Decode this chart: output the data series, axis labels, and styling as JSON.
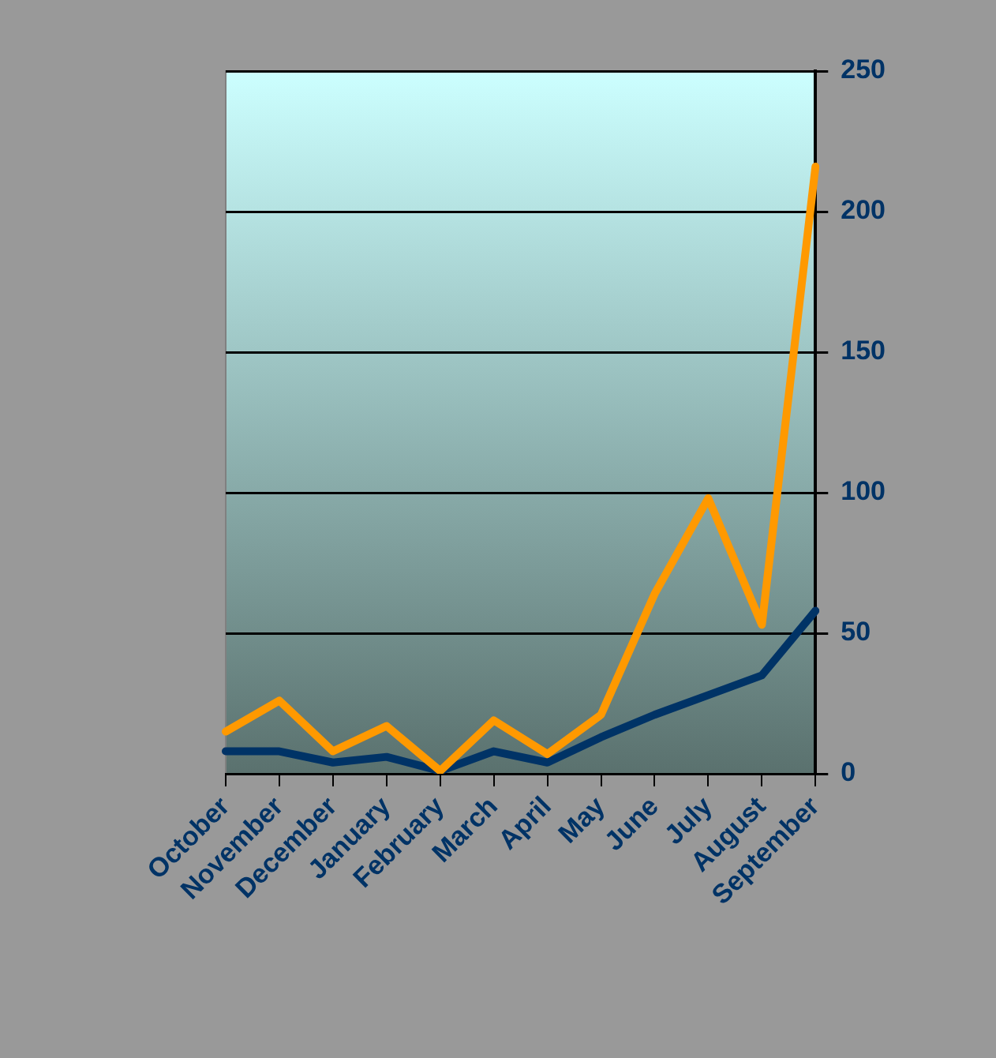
{
  "chart_data": {
    "type": "line",
    "categories": [
      "October",
      "November",
      "December",
      "January",
      "February",
      "March",
      "April",
      "May",
      "June",
      "July",
      "August",
      "September"
    ],
    "series": [
      {
        "color": "#ff9900",
        "values": [
          15,
          26,
          8,
          17,
          1,
          19,
          7,
          21,
          64,
          98,
          53,
          216
        ]
      },
      {
        "color": "#003366",
        "values": [
          8,
          8,
          4,
          6,
          1,
          8,
          4,
          13,
          21,
          28,
          35,
          58
        ]
      }
    ],
    "ylim": [
      0,
      250
    ],
    "yticks": [
      0,
      50,
      100,
      150,
      200,
      250
    ],
    "grid": "y",
    "legend": false,
    "marker": "none",
    "line_style": "solid"
  }
}
